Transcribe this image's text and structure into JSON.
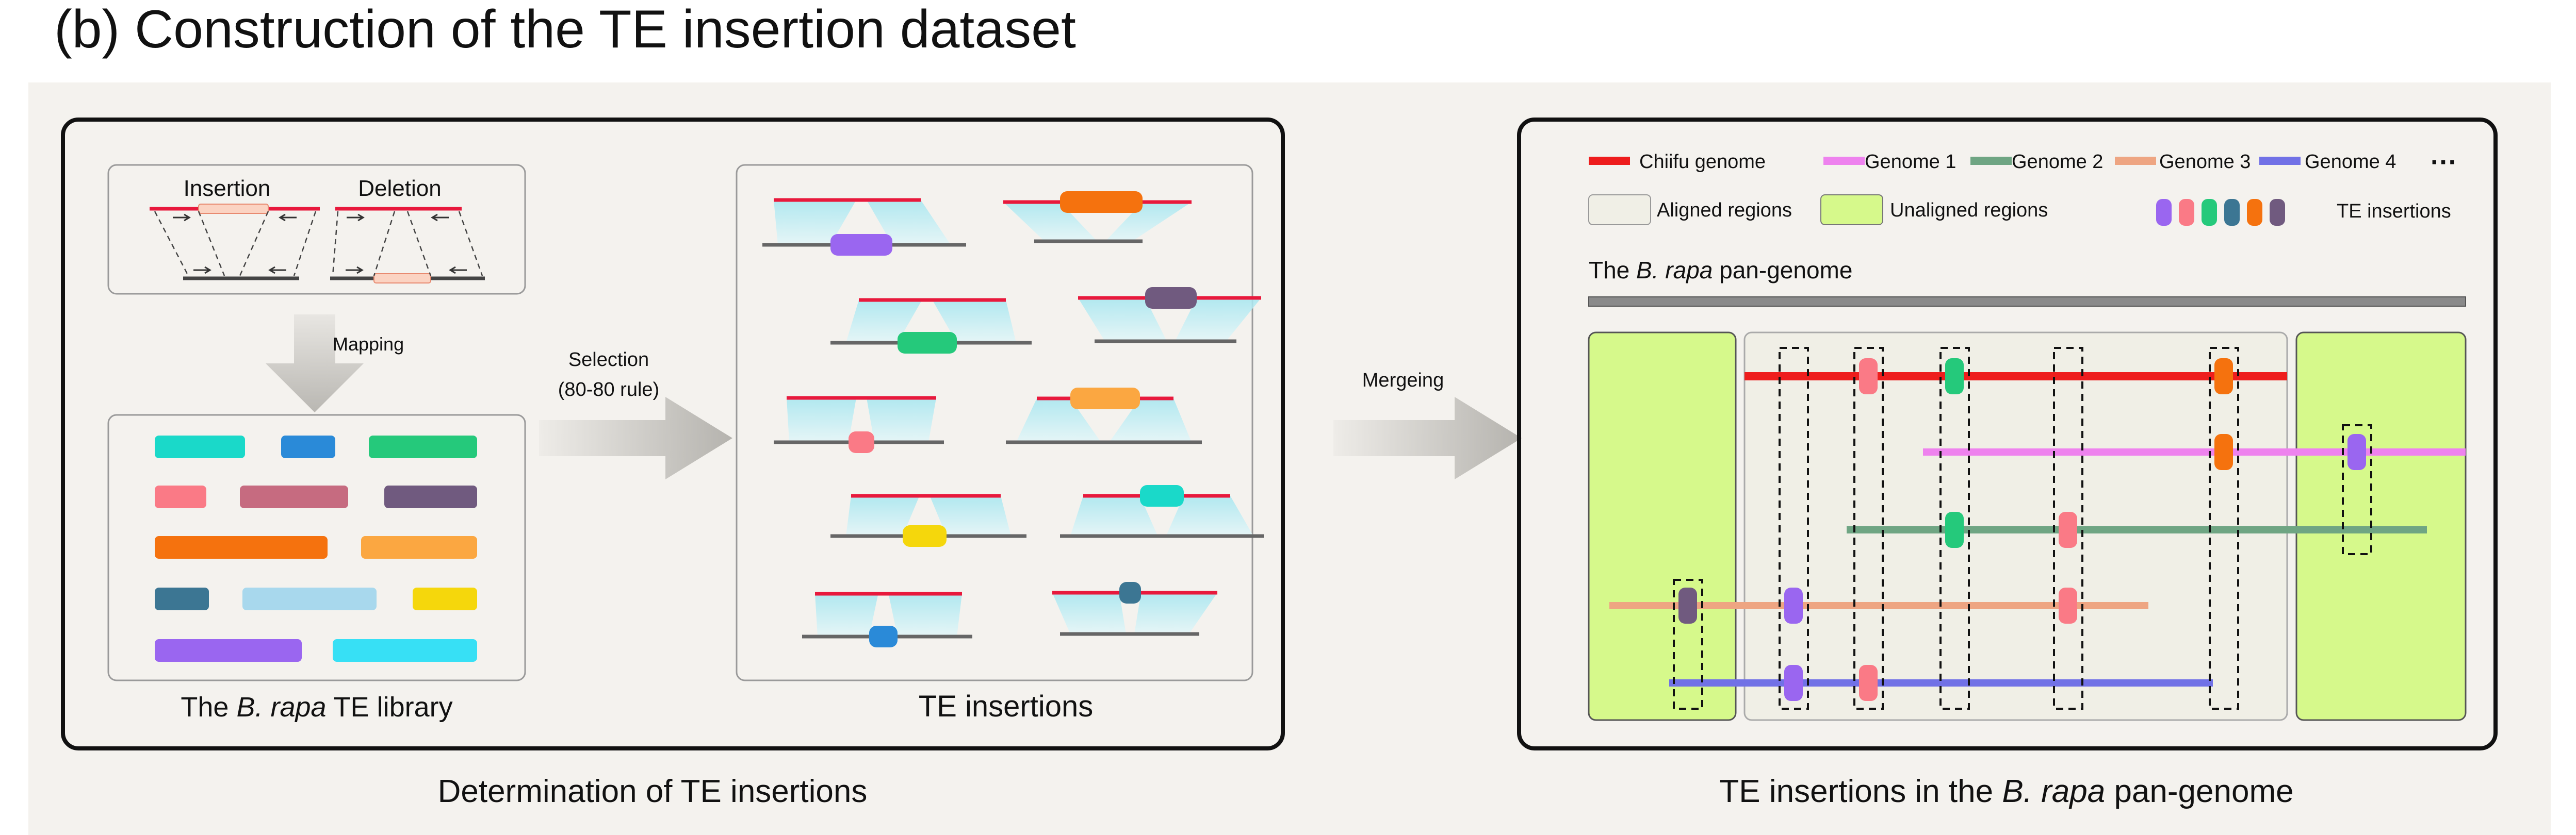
{
  "figure": {
    "title": "(b) Construction of the TE insertion dataset",
    "left_caption": "Determination of TE insertions",
    "right_caption_pre": "TE insertions in the ",
    "right_caption_italic": "B. rapa",
    "right_caption_post": " pan-genome"
  },
  "colors": {
    "reference": "#e8193c",
    "query": "#666666",
    "chiifu": "#ee1d1d",
    "genome1": "#ee82ee",
    "genome2": "#6fa583",
    "genome3": "#eea582",
    "genome4": "#7171e6",
    "aligned_fill": "#f0efe6",
    "unaligned_fill": "#d6f98b",
    "panel_bg": "#f4f2ee"
  },
  "left": {
    "insertion_label": "Insertion",
    "deletion_label": "Deletion",
    "mapping_label": "Mapping",
    "library_caption_pre": "The ",
    "library_caption_italic": "B. rapa",
    "library_caption_post": " TE library",
    "library_colors": [
      "#1ad9c9",
      "#2a8ad8",
      "#25c97b",
      "#fa7a86",
      "#c66b80",
      "#705a7f",
      "#f5720e",
      "#fba741",
      "#3c7693",
      "#a8d8ed",
      "#f5d70c",
      "#37e0f5",
      "#9a66f0"
    ],
    "selection_label_1": "Selection",
    "selection_label_2": "(80-80 rule)",
    "insertions_caption": "TE insertions",
    "insertion_examples": [
      {
        "color": "#9a66f0"
      },
      {
        "color": "#f5720e"
      },
      {
        "color": "#25c97b"
      },
      {
        "color": "#705a7f"
      },
      {
        "color": "#fa7a86"
      },
      {
        "color": "#fba741"
      },
      {
        "color": "#f5d70c"
      },
      {
        "color": "#1ad9c9"
      },
      {
        "color": "#2a8ad8"
      },
      {
        "color": "#3c7693"
      }
    ]
  },
  "merging_label": "Mergeing",
  "legend": {
    "chiifu": "Chiifu genome",
    "genome1": "Genome 1",
    "genome2": "Genome 2",
    "genome3": "Genome 3",
    "genome4": "Genome 4",
    "more": "···",
    "aligned": "Aligned regions",
    "unaligned": "Unaligned regions",
    "te_insertions": "TE insertions",
    "te_colors": [
      "#9a66f0",
      "#fa7a86",
      "#25c97b",
      "#3c7693",
      "#f5720e",
      "#705a7f"
    ]
  },
  "pangenome": {
    "label_pre": "The ",
    "label_italic": "B. rapa",
    "label_post": " pan-genome"
  }
}
